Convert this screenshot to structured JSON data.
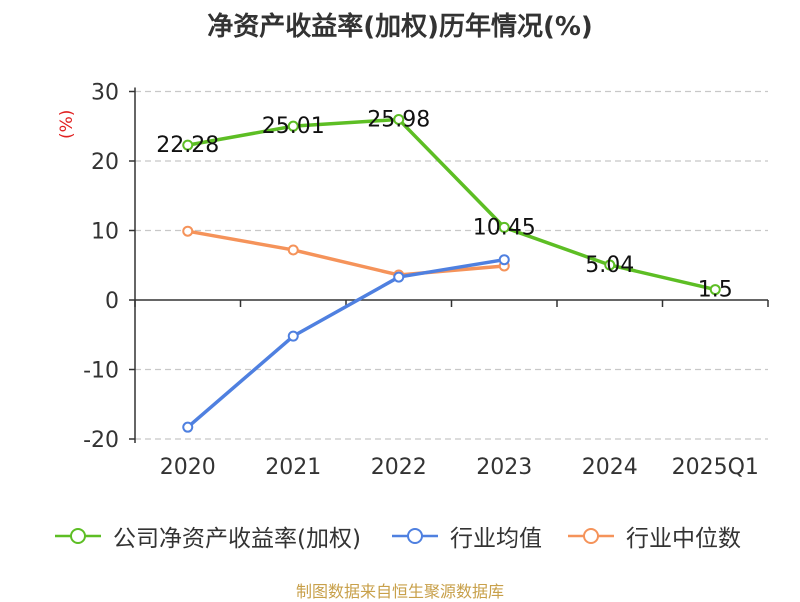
{
  "title": "净资产收益率(加权)历年情况(%)",
  "unit": "(%)",
  "source": "制图数据来自恒生聚源数据库",
  "colors": {
    "company": "#5dbe24",
    "industry_avg": "#4f80e0",
    "industry_median": "#f5935a",
    "unit": "#e02020",
    "source": "#c8a04a"
  },
  "chart_data": {
    "type": "line",
    "categories": [
      "2020",
      "2021",
      "2022",
      "2023",
      "2024",
      "2025Q1"
    ],
    "ylim": [
      -20,
      30
    ],
    "yticks": [
      30,
      20,
      10,
      0,
      -10,
      -20
    ],
    "ylabel": "(%)",
    "grid": true,
    "legend": "bottom",
    "series": [
      {
        "name": "公司净资产收益率(加权)",
        "color": "#5dbe24",
        "values": [
          22.28,
          25.01,
          25.98,
          10.45,
          5.04,
          1.5
        ],
        "labels": [
          "22.28",
          "25.01",
          "25.98",
          "10.45",
          "5.04",
          "1.5"
        ]
      },
      {
        "name": "行业均值",
        "color": "#4f80e0",
        "values": [
          -18.3,
          -5.2,
          3.3,
          5.8,
          null,
          null
        ]
      },
      {
        "name": "行业中位数",
        "color": "#f5935a",
        "values": [
          9.9,
          7.2,
          3.6,
          4.9,
          null,
          null
        ]
      }
    ]
  }
}
